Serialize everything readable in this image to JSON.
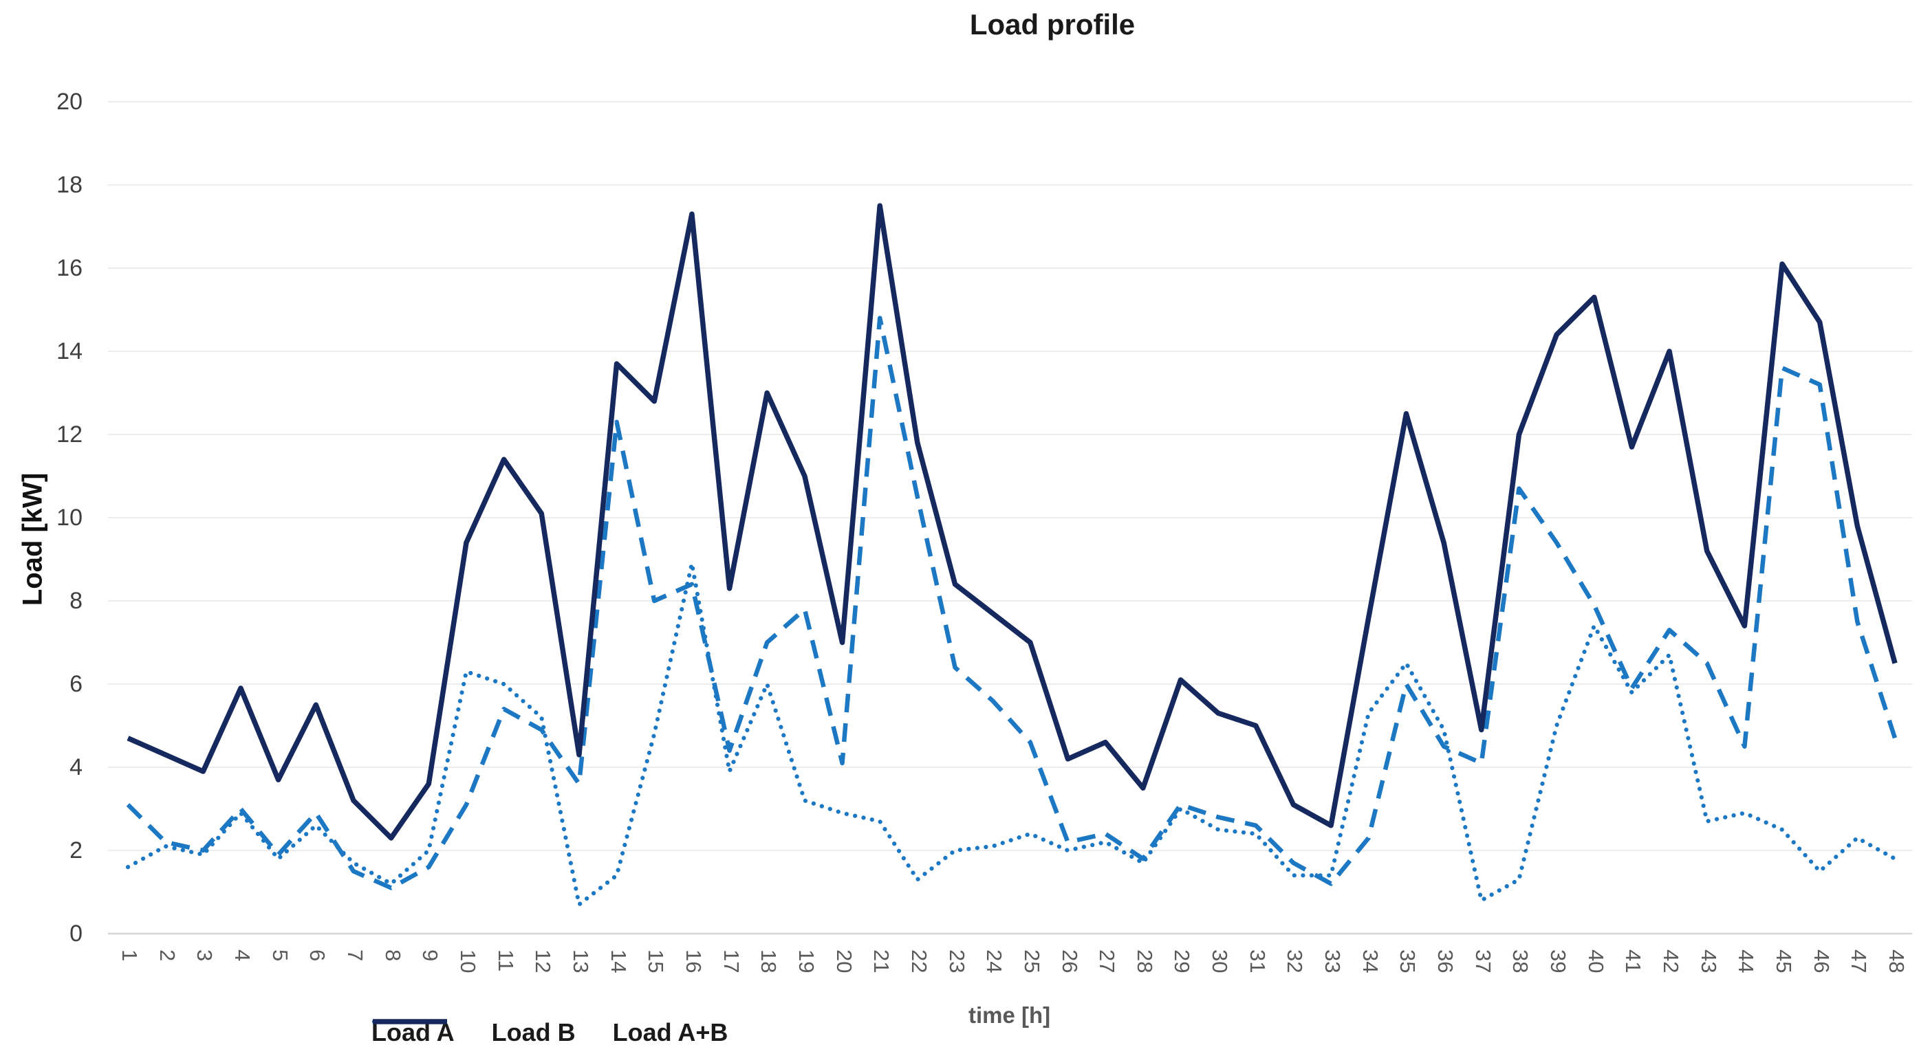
{
  "title": "Load profile",
  "axes": {
    "y_title": "Load [kW]",
    "x_title": "time [h]",
    "y_tick_labels": [
      "0",
      "2",
      "4",
      "6",
      "8",
      "10",
      "12",
      "14",
      "16",
      "18",
      "20"
    ],
    "x_tick_labels": [
      "1",
      "2",
      "3",
      "4",
      "5",
      "6",
      "7",
      "8",
      "9",
      "10",
      "11",
      "12",
      "13",
      "14",
      "15",
      "16",
      "17",
      "18",
      "19",
      "20",
      "21",
      "22",
      "23",
      "24",
      "25",
      "26",
      "27",
      "28",
      "29",
      "30",
      "31",
      "32",
      "33",
      "34",
      "35",
      "36",
      "37",
      "38",
      "39",
      "40",
      "41",
      "42",
      "43",
      "44",
      "45",
      "46",
      "47",
      "48"
    ]
  },
  "legend": [
    {
      "label": "Load A",
      "style": "dashed"
    },
    {
      "label": "Load B",
      "style": "dotted"
    },
    {
      "label": "Load A+B",
      "style": "solid"
    }
  ],
  "colors": {
    "navy": "#16295e",
    "blue": "#1d78c4",
    "gridline": "#ededed",
    "axis_line": "#d6d6d6",
    "title_text": "#1a1a1a",
    "y_label_text": "#3f3f3f",
    "x_label_text": "#595959"
  },
  "chart_data": {
    "type": "line",
    "title": "Load profile",
    "xlabel": "time [h]",
    "ylabel": "Load [kW]",
    "x": [
      1,
      2,
      3,
      4,
      5,
      6,
      7,
      8,
      9,
      10,
      11,
      12,
      13,
      14,
      15,
      16,
      17,
      18,
      19,
      20,
      21,
      22,
      23,
      24,
      25,
      26,
      27,
      28,
      29,
      30,
      31,
      32,
      33,
      34,
      35,
      36,
      37,
      38,
      39,
      40,
      41,
      42,
      43,
      44,
      45,
      46,
      47,
      48
    ],
    "ylim": [
      0,
      20
    ],
    "grid": true,
    "legend_position": "bottom",
    "series": [
      {
        "name": "Load A",
        "style": "dashed",
        "values": [
          3.1,
          2.2,
          2.0,
          3.0,
          1.9,
          2.9,
          1.5,
          1.1,
          1.6,
          3.1,
          5.4,
          4.9,
          3.6,
          12.3,
          8.0,
          8.4,
          4.4,
          7.0,
          7.8,
          4.1,
          14.8,
          10.5,
          6.4,
          5.6,
          4.6,
          2.2,
          2.4,
          1.8,
          3.1,
          2.8,
          2.6,
          1.7,
          1.2,
          2.3,
          6.0,
          4.5,
          4.1,
          10.7,
          9.4,
          7.9,
          5.9,
          7.3,
          6.5,
          4.5,
          13.6,
          13.2,
          7.5,
          4.7
        ]
      },
      {
        "name": "Load B",
        "style": "dotted",
        "values": [
          1.6,
          2.1,
          1.9,
          2.9,
          1.8,
          2.6,
          1.7,
          1.2,
          2.0,
          6.3,
          6.0,
          5.2,
          0.7,
          1.4,
          4.8,
          8.9,
          3.9,
          6.0,
          3.2,
          2.9,
          2.7,
          1.3,
          2.0,
          2.1,
          2.4,
          2.0,
          2.2,
          1.7,
          3.0,
          2.5,
          2.4,
          1.4,
          1.4,
          5.3,
          6.5,
          4.9,
          0.8,
          1.3,
          5.0,
          7.4,
          5.8,
          6.7,
          2.7,
          2.9,
          2.5,
          1.5,
          2.3,
          1.8
        ]
      },
      {
        "name": "Load A+B",
        "style": "solid",
        "values": [
          4.7,
          4.3,
          3.9,
          5.9,
          3.7,
          5.5,
          3.2,
          2.3,
          3.6,
          9.4,
          11.4,
          10.1,
          4.3,
          13.7,
          12.8,
          17.3,
          8.3,
          13.0,
          11.0,
          7.0,
          17.5,
          11.8,
          8.4,
          7.7,
          7.0,
          4.2,
          4.6,
          3.5,
          6.1,
          5.3,
          5.0,
          3.1,
          2.6,
          7.6,
          12.5,
          9.4,
          4.9,
          12.0,
          14.4,
          15.3,
          11.7,
          14.0,
          9.2,
          7.4,
          16.1,
          14.7,
          9.8,
          6.5
        ]
      }
    ]
  }
}
